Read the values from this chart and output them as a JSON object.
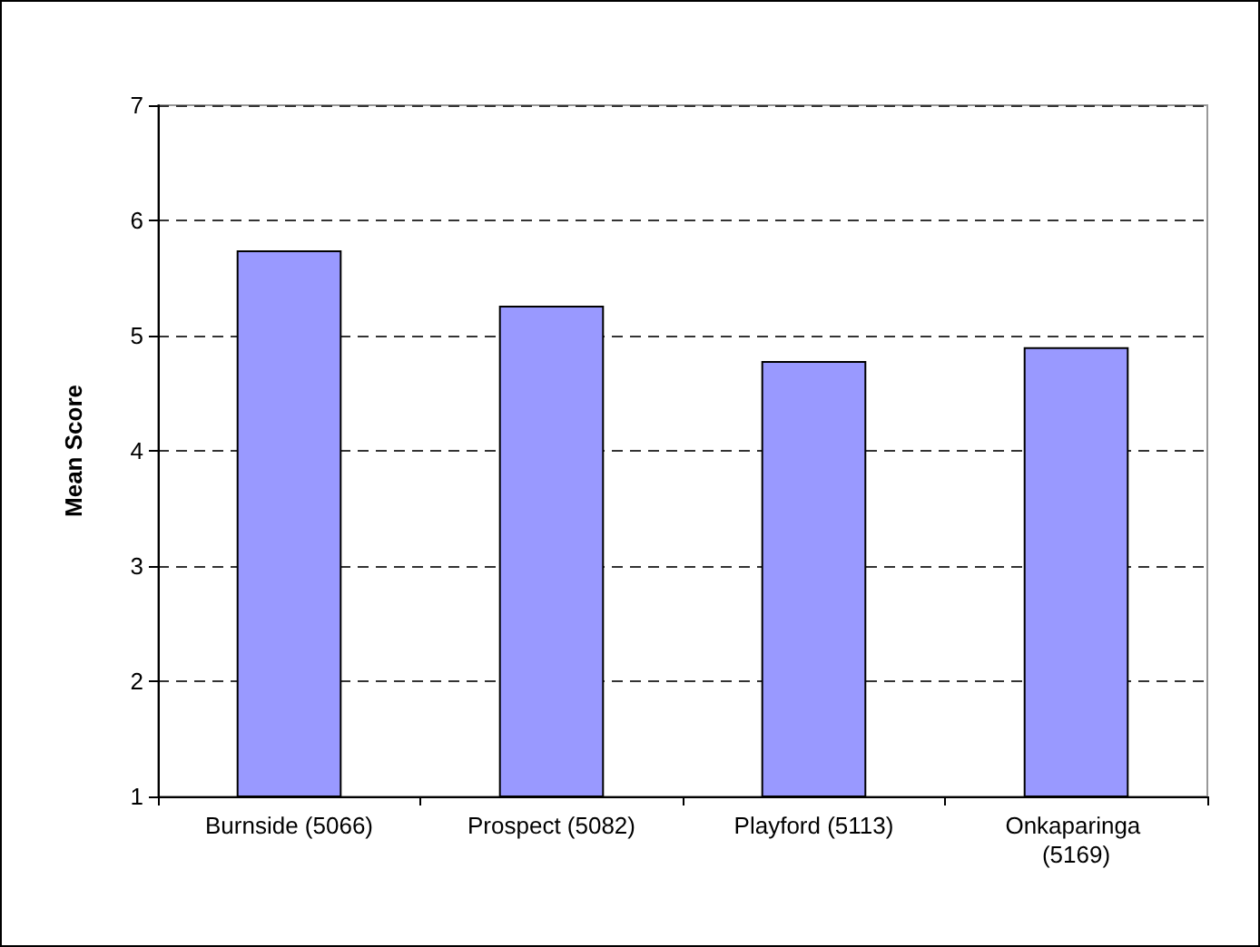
{
  "chart_data": {
    "type": "bar",
    "ylabel": "Mean Score",
    "categories": [
      "Burnside (5066)",
      "Prospect (5082)",
      "Playford (5113)",
      "Onkaparinga (5169)"
    ],
    "values": [
      5.74,
      5.26,
      4.78,
      4.9
    ],
    "color": "#9999ff",
    "ylim": [
      1,
      7
    ],
    "yticks": [
      1,
      2,
      3,
      4,
      5,
      6,
      7
    ],
    "grid": "y"
  }
}
